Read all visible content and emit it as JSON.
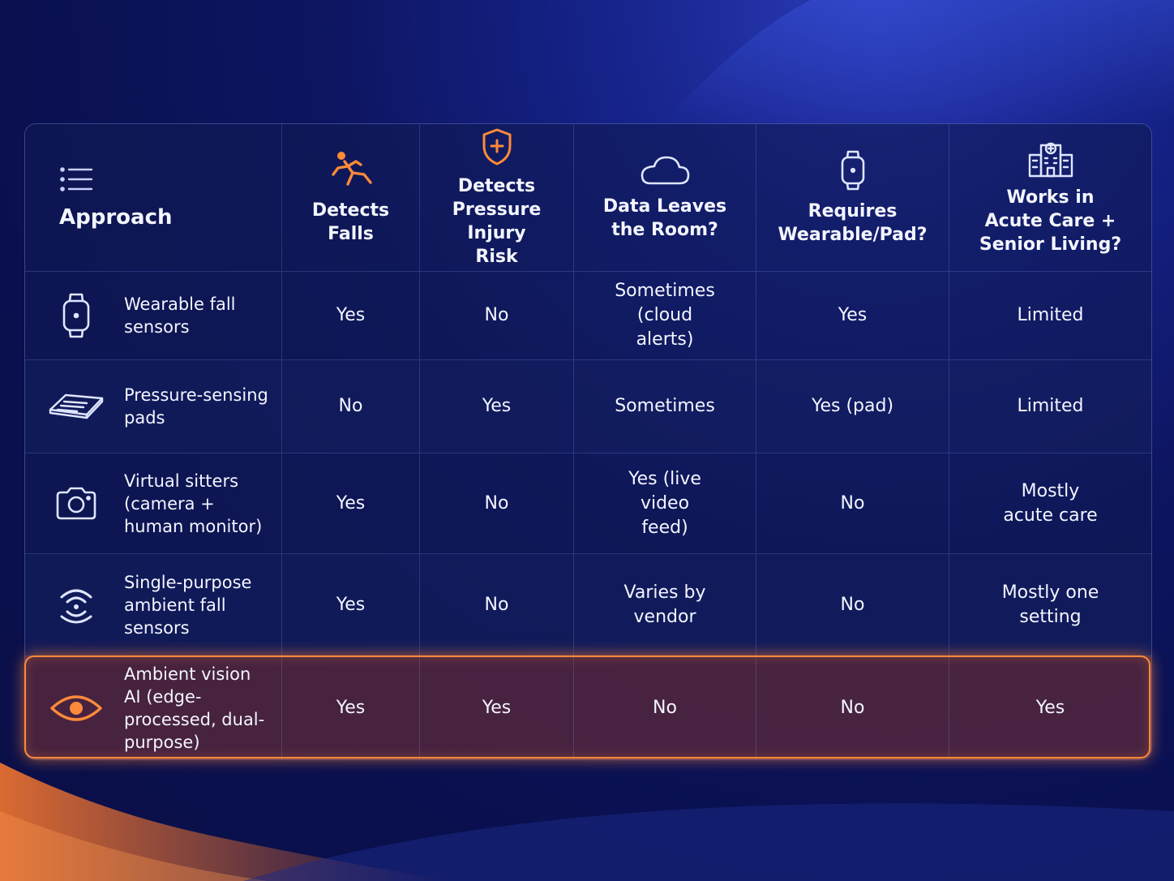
{
  "colors": {
    "accent": "#ff8a3a",
    "text": "#f3f5ff",
    "icon": "#e8ecff"
  },
  "header": {
    "approach": {
      "label": "Approach",
      "icon": "list-icon"
    },
    "columns": [
      {
        "label": "Detects Falls",
        "icon": "falling-person-icon"
      },
      {
        "label": "Detects Pressure Injury Risk",
        "icon": "shield-plus-icon"
      },
      {
        "label": "Data Leaves the Room?",
        "icon": "cloud-icon"
      },
      {
        "label": "Requires Wearable/Pad?",
        "icon": "watch-icon"
      },
      {
        "label": "Works in Acute Care + Senior Living?",
        "icon": "hospital-icon"
      }
    ]
  },
  "rows": [
    {
      "approach": "Wearable fall sensors",
      "icon": "watch-icon",
      "values": [
        "Yes",
        "No",
        "Sometimes (cloud alerts)",
        "Yes",
        "Limited"
      ]
    },
    {
      "approach": "Pressure-sensing pads",
      "icon": "pad-icon",
      "values": [
        "No",
        "Yes",
        "Sometimes",
        "Yes (pad)",
        "Limited"
      ]
    },
    {
      "approach": "Virtual sitters (camera + human monitor)",
      "icon": "camera-icon",
      "values": [
        "Yes",
        "No",
        "Yes (live video feed)",
        "No",
        "Mostly acute care"
      ]
    },
    {
      "approach": "Single-purpose ambient fall sensors",
      "icon": "wireless-sensor-icon",
      "values": [
        "Yes",
        "No",
        "Varies by vendor",
        "No",
        "Mostly one setting"
      ]
    },
    {
      "approach": "Ambient vision AI (edge-processed, dual-purpose)",
      "icon": "eye-icon",
      "highlighted": true,
      "values": [
        "Yes",
        "Yes",
        "No",
        "No",
        "Yes"
      ]
    }
  ]
}
